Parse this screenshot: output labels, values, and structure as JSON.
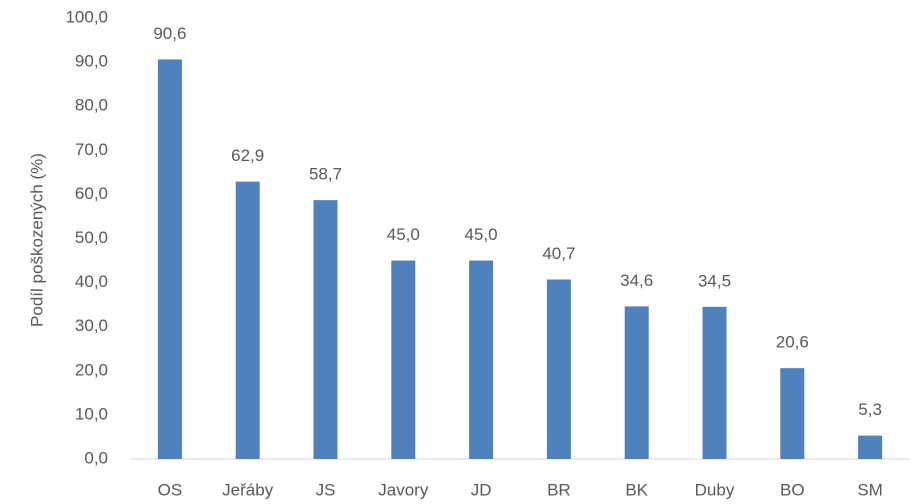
{
  "chart_data": {
    "type": "bar",
    "y_label": "Podíl poškozených (%)",
    "categories": [
      "OS",
      "Jeřáby",
      "JS",
      "Javory",
      "JD",
      "BR",
      "BK",
      "Duby",
      "BO",
      "SM"
    ],
    "values": [
      90.6,
      62.9,
      58.7,
      45.0,
      45.0,
      40.7,
      34.6,
      34.5,
      20.6,
      5.3
    ],
    "value_labels": [
      "90,6",
      "62,9",
      "58,7",
      "45,0",
      "45,0",
      "40,7",
      "34,6",
      "34,5",
      "20,6",
      "5,3"
    ],
    "color": "#4f81bd",
    "ylim": [
      0,
      100
    ],
    "yticks": [
      {
        "value": 0,
        "label": "0,0"
      },
      {
        "value": 10,
        "label": "10,0"
      },
      {
        "value": 20,
        "label": "20,0"
      },
      {
        "value": 30,
        "label": "30,0"
      },
      {
        "value": 40,
        "label": "40,0"
      },
      {
        "value": 50,
        "label": "50,0"
      },
      {
        "value": 60,
        "label": "60,0"
      },
      {
        "value": 70,
        "label": "70,0"
      },
      {
        "value": 80,
        "label": "80,0"
      },
      {
        "value": 90,
        "label": "90,0"
      },
      {
        "value": 100,
        "label": "100,0"
      }
    ],
    "grid": false
  }
}
